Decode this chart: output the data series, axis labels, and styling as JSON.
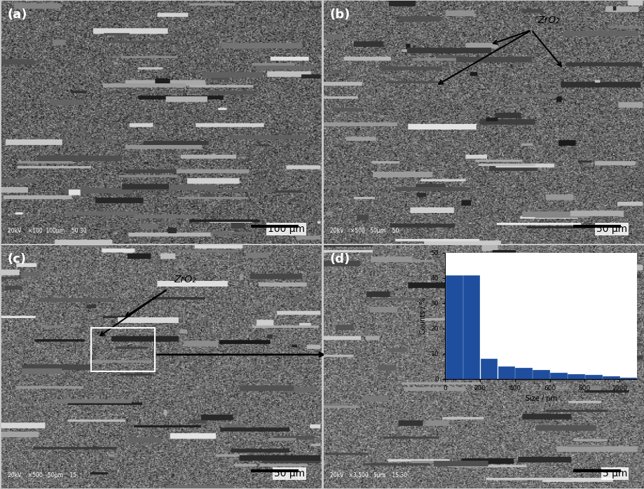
{
  "panel_labels": [
    "(a)",
    "(b)",
    "(c)",
    "(d)"
  ],
  "scale_bar_texts": [
    "100 μm",
    "50 μm",
    "50 μm",
    "5 μm"
  ],
  "zro2_label": "ZrO₂",
  "hist_xlabel": "Size / nm",
  "hist_ylabel": "Counts / %",
  "hist_ylim": [
    0,
    50
  ],
  "hist_xlim": [
    0,
    1100
  ],
  "hist_yticks": [
    0,
    10,
    20,
    30,
    40,
    50
  ],
  "hist_xticks": [
    0,
    200,
    400,
    600,
    800,
    1000
  ],
  "hist_bar_color": "#1f4e9e",
  "hist_bar_edges": [
    0,
    100,
    200,
    300,
    400,
    500,
    600,
    700,
    800,
    900,
    1000,
    1100
  ],
  "hist_bar_heights": [
    41,
    41,
    8,
    5,
    4.5,
    3.5,
    2.5,
    2,
    1.5,
    1,
    0.5
  ],
  "background_color": "#ffffff",
  "sem_bg_top": "#808080",
  "sem_bg_bottom": "#606060",
  "figure_bg": "#d0d0d0"
}
